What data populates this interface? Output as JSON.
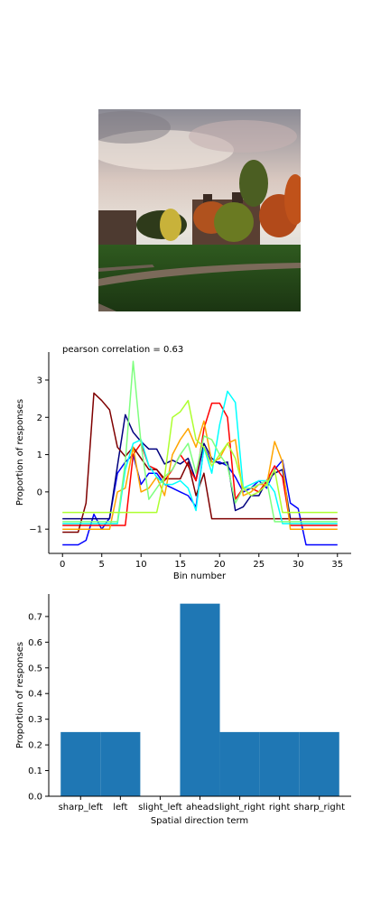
{
  "photo": {
    "description_icon": "campus-photo-icon"
  },
  "chart_data": [
    {
      "type": "line",
      "title": "pearson correlation = 0.63",
      "xlabel": "Bin number",
      "ylabel": "Proportion of responses",
      "xlim": [
        -1.75,
        36.75
      ],
      "ylim": [
        -1.65,
        3.75
      ],
      "xticks": [
        0,
        5,
        10,
        15,
        20,
        25,
        30,
        35
      ],
      "yticks": [
        -1,
        0,
        1,
        2,
        3
      ],
      "grid": false,
      "x": [
        0,
        1,
        2,
        3,
        4,
        5,
        6,
        7,
        8,
        9,
        10,
        11,
        12,
        13,
        14,
        15,
        16,
        17,
        18,
        19,
        20,
        21,
        22,
        23,
        24,
        25,
        26,
        27,
        28,
        29,
        30,
        31,
        32,
        33,
        34,
        35
      ],
      "series": [
        {
          "color": "#0000ff",
          "values": [
            -1.42,
            -1.42,
            -1.42,
            -1.3,
            -0.6,
            -1.0,
            -0.7,
            0.5,
            0.8,
            1.0,
            0.2,
            0.5,
            0.5,
            0.2,
            0.1,
            0.0,
            -0.1,
            -0.4,
            1.2,
            0.8,
            0.8,
            0.7,
            0.4,
            0.0,
            0.1,
            0.3,
            0.1,
            0.6,
            0.85,
            -0.3,
            -0.45,
            -1.42,
            -1.42,
            -1.42,
            -1.42,
            -1.42
          ]
        },
        {
          "color": "#00007f",
          "values": [
            -0.72,
            -0.72,
            -0.72,
            -0.72,
            -0.72,
            -0.72,
            -0.72,
            0.7,
            2.07,
            1.6,
            1.35,
            1.15,
            1.15,
            0.75,
            0.85,
            0.75,
            0.9,
            0.3,
            1.3,
            0.9,
            0.75,
            0.8,
            -0.5,
            -0.4,
            -0.1,
            -0.1,
            0.3,
            0.5,
            0.6,
            -0.72,
            -0.72,
            -0.72,
            -0.72,
            -0.72,
            -0.72,
            -0.72
          ]
        },
        {
          "color": "#ff0000",
          "values": [
            -0.9,
            -0.9,
            -0.9,
            -0.9,
            -0.9,
            -0.9,
            -0.9,
            -0.9,
            -0.9,
            1.0,
            1.3,
            0.7,
            0.6,
            0.3,
            0.6,
            1.0,
            0.7,
            0.3,
            1.7,
            2.38,
            2.38,
            2.0,
            -0.2,
            0.1,
            0.1,
            0.0,
            0.3,
            0.7,
            0.4,
            -0.9,
            -0.9,
            -0.9,
            -0.9,
            -0.9,
            -0.9,
            -0.9
          ]
        },
        {
          "color": "#7f0000",
          "values": [
            -1.08,
            -1.08,
            -1.08,
            -0.3,
            2.65,
            2.45,
            2.2,
            1.2,
            0.95,
            1.2,
            0.9,
            0.6,
            0.6,
            0.35,
            0.35,
            0.35,
            0.8,
            -0.1,
            0.5,
            -0.72,
            -0.72,
            -0.72,
            -0.72,
            -0.72,
            -0.72,
            -0.72,
            -0.72,
            -0.72,
            -0.72,
            -0.72,
            -0.72,
            -0.72,
            -0.72,
            -0.72,
            -0.72,
            -0.72
          ]
        },
        {
          "color": "#ffa500",
          "values": [
            -1.0,
            -1.0,
            -1.0,
            -1.0,
            -1.0,
            -1.0,
            -1.0,
            0.0,
            0.1,
            1.2,
            0.0,
            0.1,
            0.4,
            -0.1,
            1.0,
            1.4,
            1.7,
            1.2,
            1.9,
            0.8,
            0.9,
            1.3,
            1.4,
            -0.1,
            0.0,
            0.2,
            0.2,
            1.35,
            0.8,
            -1.0,
            -1.0,
            -1.0,
            -1.0,
            -1.0,
            -1.0,
            -1.0
          ]
        },
        {
          "color": "#00ffff",
          "values": [
            -0.85,
            -0.85,
            -0.85,
            -0.85,
            -0.85,
            -0.85,
            -0.85,
            -0.85,
            0.6,
            1.3,
            1.4,
            0.7,
            0.4,
            0.2,
            0.2,
            0.3,
            0.1,
            -0.5,
            1.2,
            0.5,
            1.8,
            2.7,
            2.4,
            0.1,
            0.2,
            0.3,
            0.3,
            0.0,
            -0.85,
            -0.85,
            -0.85,
            -0.85,
            -0.85,
            -0.85,
            -0.85,
            -0.85
          ]
        },
        {
          "color": "#7fff7f",
          "values": [
            -0.8,
            -0.8,
            -0.8,
            -0.8,
            -0.8,
            -0.8,
            -0.8,
            -0.8,
            0.8,
            3.5,
            1.3,
            -0.2,
            0.1,
            0.4,
            0.6,
            1.0,
            1.3,
            0.5,
            1.5,
            1.4,
            1.0,
            0.7,
            -0.3,
            0.1,
            0.1,
            0.2,
            0.3,
            -0.8,
            -0.8,
            -0.8,
            -0.8,
            -0.8,
            -0.8,
            -0.8,
            -0.8,
            -0.8
          ]
        },
        {
          "color": "#adff2f",
          "values": [
            -0.55,
            -0.55,
            -0.55,
            -0.55,
            -0.55,
            -0.55,
            -0.55,
            -0.55,
            -0.55,
            -0.55,
            -0.55,
            -0.55,
            -0.55,
            0.4,
            2.0,
            2.15,
            2.45,
            1.4,
            1.2,
            0.7,
            1.0,
            1.3,
            0.9,
            0.1,
            -0.1,
            0.0,
            0.2,
            0.6,
            -0.55,
            -0.55,
            -0.55,
            -0.55,
            -0.55,
            -0.55,
            -0.55,
            -0.55
          ]
        }
      ]
    },
    {
      "type": "bar",
      "xlabel": "Spatial direction term",
      "ylabel": "Proportion of responses",
      "categories": [
        "sharp_left",
        "left",
        "slight_left",
        "ahead",
        "slight_right",
        "right",
        "sharp_right"
      ],
      "values": [
        0.25,
        0.25,
        0.0,
        0.75,
        0.25,
        0.25,
        0.25
      ],
      "ylim": [
        0,
        0.7875
      ],
      "yticks": [
        "0.0",
        "0.1",
        "0.2",
        "0.3",
        "0.4",
        "0.5",
        "0.6",
        "0.7"
      ],
      "grid": false,
      "color": "#1f77b4"
    }
  ]
}
